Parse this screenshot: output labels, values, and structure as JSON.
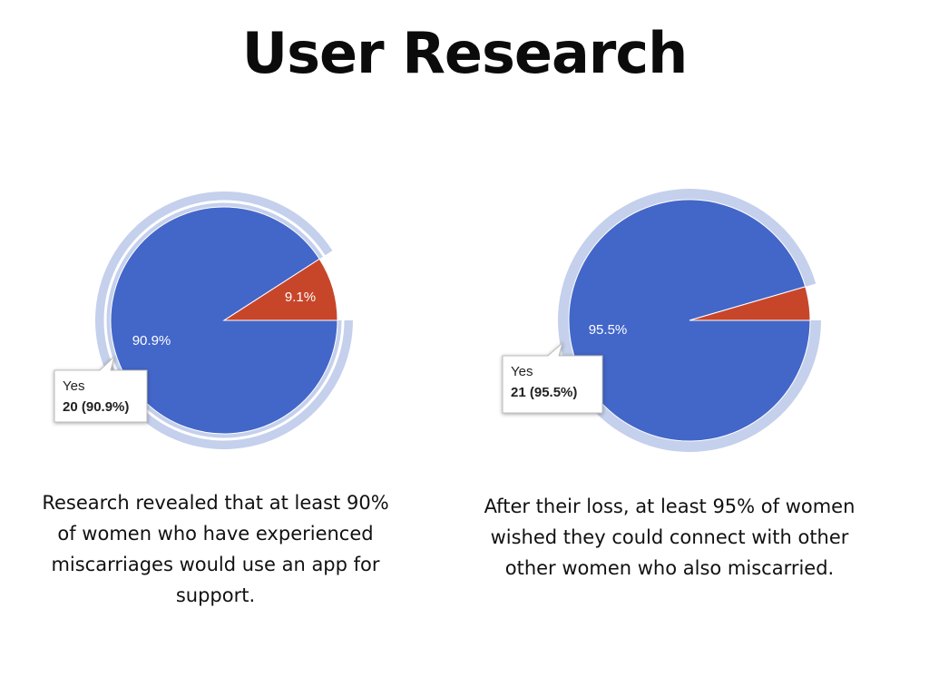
{
  "page": {
    "title": "User Research"
  },
  "colors": {
    "primary_slice": "#4366c9",
    "secondary_slice": "#c7462a",
    "highlight_ring": "#c4d0ec",
    "tooltip_border": "#bdbdbd"
  },
  "chart_data": [
    {
      "type": "pie",
      "slices": [
        {
          "label": "Yes",
          "count": 20,
          "percent": 90.9,
          "display": "90.9%",
          "color": "#4366c9"
        },
        {
          "label": "",
          "count": 2,
          "percent": 9.1,
          "display": "9.1%",
          "color": "#c7462a"
        }
      ],
      "tooltip": {
        "line1": "Yes",
        "line2": "20 (90.9%)"
      },
      "caption": "Research revealed that at least 90% of women who have experienced miscarriages would use an app for support."
    },
    {
      "type": "pie",
      "slices": [
        {
          "label": "Yes",
          "count": 21,
          "percent": 95.5,
          "display": "95.5%",
          "color": "#4366c9"
        },
        {
          "label": "",
          "count": 1,
          "percent": 4.5,
          "display": "",
          "color": "#c7462a"
        }
      ],
      "tooltip": {
        "line1": "Yes",
        "line2": "21 (95.5%)"
      },
      "caption": "After their loss, at least 95% of women wished they could connect with other other women who also miscarried."
    }
  ]
}
